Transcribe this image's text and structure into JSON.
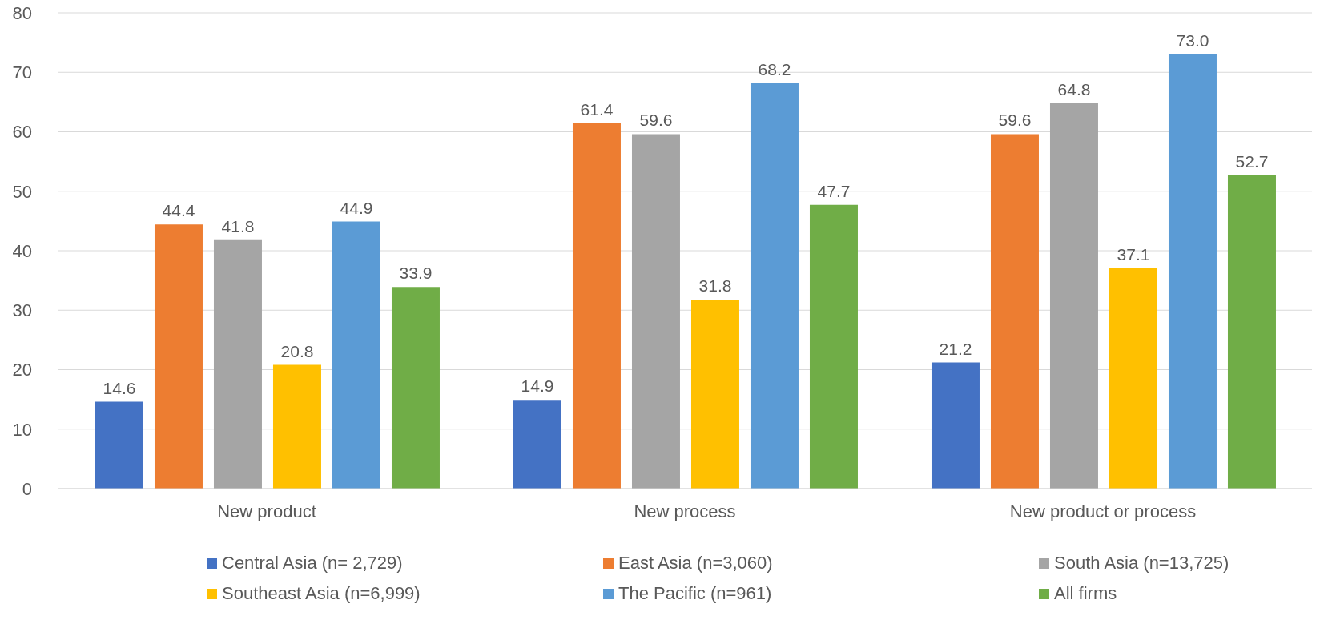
{
  "chart_data": {
    "type": "bar",
    "categories": [
      "New product",
      "New process",
      "New product or  process"
    ],
    "series": [
      {
        "name": "Central Asia (n= 2,729)",
        "color": "#4472c4",
        "values": [
          14.6,
          14.9,
          21.2
        ],
        "value_labels": [
          "14.6",
          "14.9",
          "21.2"
        ]
      },
      {
        "name": "East Asia (n=3,060)",
        "color": "#ed7d31",
        "values": [
          44.4,
          61.4,
          59.6
        ],
        "value_labels": [
          "44.4",
          "61.4",
          "59.6"
        ]
      },
      {
        "name": "South Asia (n=13,725)",
        "color": "#a5a5a5",
        "values": [
          41.8,
          59.6,
          64.8
        ],
        "value_labels": [
          "41.8",
          "59.6",
          "64.8"
        ]
      },
      {
        "name": "Southeast Asia (n=6,999)",
        "color": "#ffc000",
        "values": [
          20.8,
          31.8,
          37.1
        ],
        "value_labels": [
          "20.8",
          "31.8",
          "37.1"
        ]
      },
      {
        "name": "The Pacific (n=961)",
        "color": "#5b9bd5",
        "values": [
          44.9,
          68.2,
          73.0
        ],
        "value_labels": [
          "44.9",
          "68.2",
          "73.0"
        ]
      },
      {
        "name": "All firms",
        "color": "#70ad47",
        "values": [
          33.9,
          47.7,
          52.7
        ],
        "value_labels": [
          "33.9",
          "47.7",
          "52.7"
        ]
      }
    ],
    "ylim": [
      0,
      80
    ],
    "yticks": [
      0,
      10,
      20,
      30,
      40,
      50,
      60,
      70,
      80
    ],
    "grid": "y",
    "legend": "bottom"
  }
}
